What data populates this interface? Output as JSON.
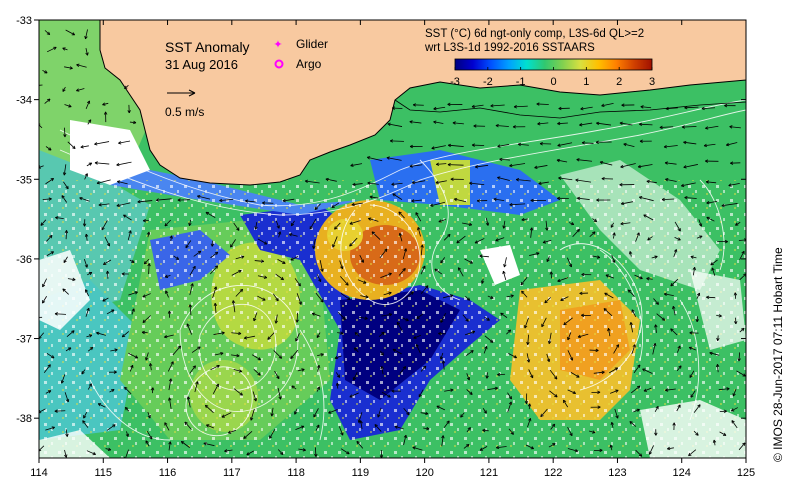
{
  "map": {
    "title": "SST Anomaly",
    "date": "31 Aug 2016",
    "legend": {
      "glider_label": "Glider",
      "argo_label": "Argo",
      "vector_scale_label": "0.5 m/s"
    },
    "colorbar": {
      "title_line1": "SST (°C) 6d ngt-only comp, L3S-6d QL>=2",
      "title_line2": "wrt L3S-1d 1992-2016 SSTAARS",
      "ticks": [
        "-3",
        "-2",
        "-1",
        "0",
        "1",
        "2",
        "3"
      ],
      "colors": [
        "#000080",
        "#0000d0",
        "#0050ff",
        "#00a0ff",
        "#00e0d0",
        "#30c870",
        "#80d050",
        "#d8e040",
        "#ffc000",
        "#ff8000",
        "#d04000",
        "#a01000"
      ]
    },
    "x_axis": {
      "ticks": [
        "114",
        "115",
        "116",
        "117",
        "118",
        "119",
        "120",
        "121",
        "122",
        "123",
        "124",
        "125"
      ],
      "range": [
        114,
        125
      ]
    },
    "y_axis": {
      "ticks": [
        "-33",
        "-34",
        "-35",
        "-36",
        "-37",
        "-38"
      ],
      "range": [
        -38.5,
        -33
      ]
    },
    "credit": "© IMOS 28-Jun-2017 07:11 Hobart Time",
    "colors": {
      "land": "#f8c9a0",
      "ocean_base": "#3cc064",
      "glider_marker": "#ff00ff",
      "argo_marker": "#ff00ff"
    }
  }
}
